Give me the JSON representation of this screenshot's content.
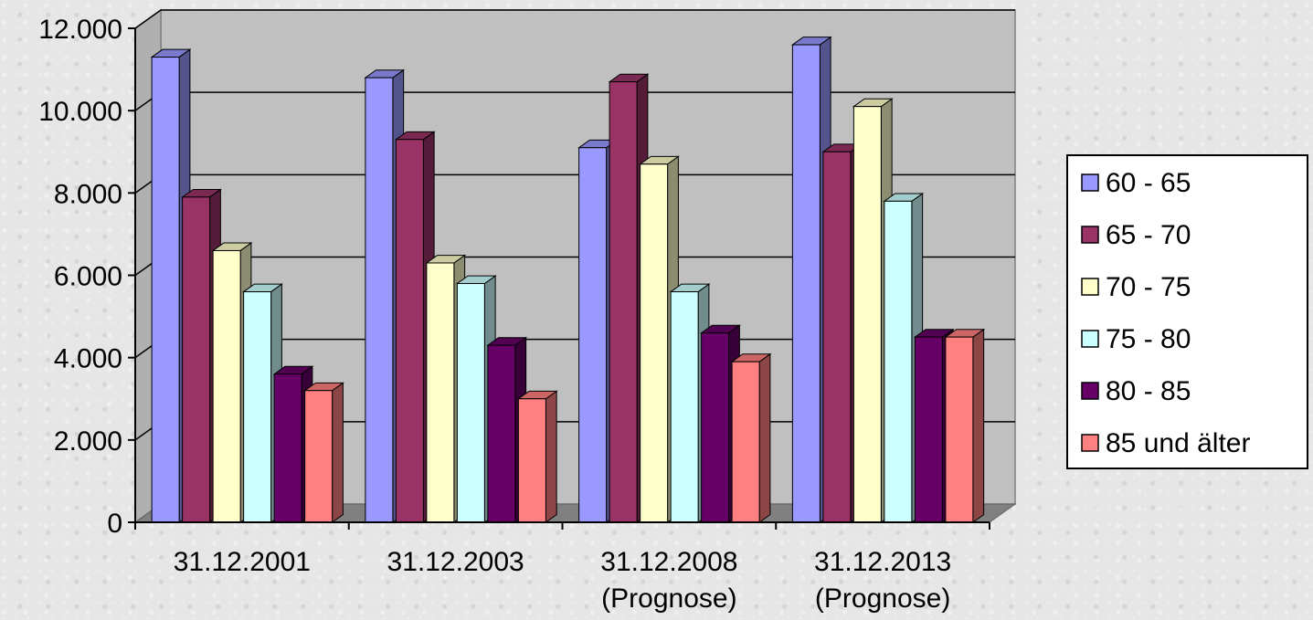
{
  "chart_data": {
    "type": "bar",
    "title": "",
    "xlabel": "",
    "ylabel": "",
    "ylim": [
      0,
      12000
    ],
    "yticks": [
      0,
      2000,
      4000,
      6000,
      8000,
      10000,
      12000
    ],
    "ytick_labels": [
      "0",
      "2.000",
      "4.000",
      "6.000",
      "8.000",
      "10.000",
      "12.000"
    ],
    "grid": true,
    "legend_position": "right",
    "categories": [
      [
        "31.12.2001"
      ],
      [
        "31.12.2003"
      ],
      [
        "31.12.2008",
        "(Prognose)"
      ],
      [
        "31.12.2013",
        "(Prognose)"
      ]
    ],
    "series": [
      {
        "name": "60 - 65",
        "color": "#9999ff",
        "values": [
          11300,
          10800,
          9100,
          11600
        ]
      },
      {
        "name": "65 - 70",
        "color": "#993366",
        "values": [
          7900,
          9300,
          10700,
          9000
        ]
      },
      {
        "name": "70 - 75",
        "color": "#ffffcc",
        "values": [
          6600,
          6300,
          8700,
          10100
        ]
      },
      {
        "name": "75 - 80",
        "color": "#ccffff",
        "values": [
          5600,
          5800,
          5600,
          7800
        ]
      },
      {
        "name": "80 - 85",
        "color": "#660066",
        "values": [
          3600,
          4300,
          4600,
          4500
        ]
      },
      {
        "name": "85 und älter",
        "color": "#ff8080",
        "values": [
          3200,
          3000,
          3900,
          4500
        ]
      }
    ],
    "wall_color": "#c0c0c0",
    "floor_color": "#808080"
  }
}
